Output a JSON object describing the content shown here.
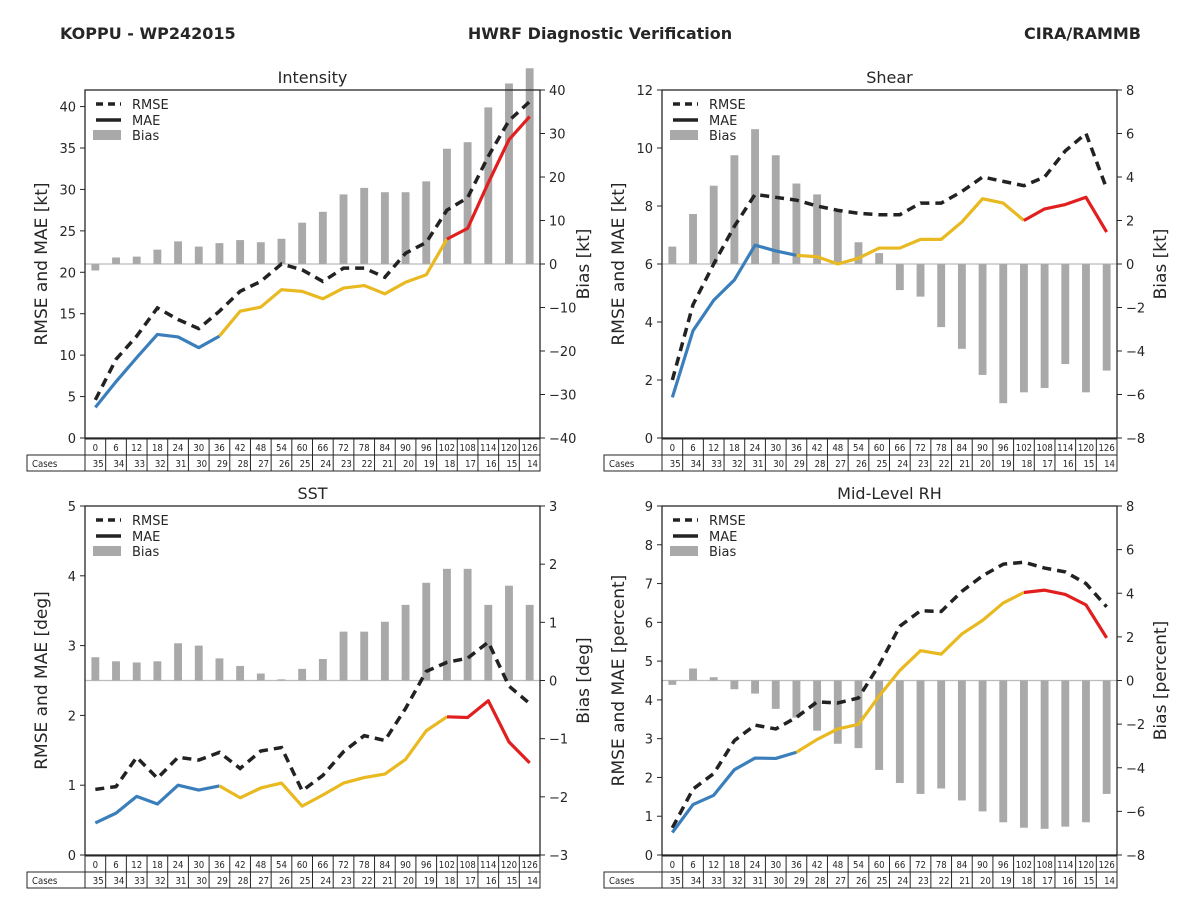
{
  "header": {
    "left": "KOPPU - WP242015",
    "center": "HWRF Diagnostic Verification",
    "right": "CIRA/RAMMB"
  },
  "colors": {
    "rmse": "#222222",
    "mae_early": "#3a7fbb",
    "mae_mid": "#e8b920",
    "mae_late": "#e21f1f",
    "bias": "#a9a9a9",
    "zero_line": "#bbbbbb"
  },
  "legend": [
    "RMSE",
    "MAE",
    "Bias"
  ],
  "table": {
    "row_label": "Cases",
    "hours": [
      "0",
      "6",
      "12",
      "18",
      "24",
      "30",
      "36",
      "42",
      "48",
      "54",
      "60",
      "66",
      "72",
      "78",
      "84",
      "90",
      "96",
      "102",
      "108",
      "114",
      "120",
      "126"
    ],
    "cases": [
      "35",
      "34",
      "33",
      "32",
      "31",
      "30",
      "29",
      "28",
      "27",
      "26",
      "25",
      "24",
      "23",
      "22",
      "21",
      "20",
      "19",
      "18",
      "17",
      "16",
      "15",
      "14"
    ]
  },
  "chart_data": [
    {
      "type": "bar+line",
      "title": "Intensity",
      "ylabel": "RMSE and MAE [kt]",
      "ylabel_right": "Bias [kt]",
      "ylim": [
        0,
        42
      ],
      "yticks": [
        0,
        5,
        10,
        15,
        20,
        25,
        30,
        35,
        40
      ],
      "ylim_right": [
        -40,
        40
      ],
      "yticks_right": [
        -40,
        -30,
        -20,
        -10,
        0,
        10,
        20,
        30,
        40
      ],
      "x": [
        0,
        6,
        12,
        18,
        24,
        30,
        36,
        42,
        48,
        54,
        60,
        66,
        72,
        78,
        84,
        90,
        96,
        102,
        108,
        114,
        120,
        126
      ],
      "series": [
        {
          "name": "RMSE",
          "values": [
            4.6,
            9.5,
            12.3,
            15.7,
            14.3,
            13.2,
            15.3,
            17.7,
            18.9,
            21.0,
            20.3,
            18.9,
            20.5,
            20.5,
            19.4,
            22.3,
            23.6,
            27.5,
            29.0,
            34.0,
            38.3,
            40.6
          ]
        },
        {
          "name": "MAE",
          "values": [
            3.7,
            6.8,
            9.7,
            12.5,
            12.2,
            10.9,
            12.3,
            15.3,
            15.8,
            17.9,
            17.7,
            16.8,
            18.1,
            18.4,
            17.4,
            18.8,
            19.7,
            24.0,
            25.3,
            30.8,
            36.0,
            38.8
          ]
        },
        {
          "name": "Bias",
          "values": [
            -1.5,
            1.5,
            1.7,
            3.3,
            5.2,
            4.0,
            4.8,
            5.5,
            5.0,
            5.8,
            9.5,
            12.0,
            16.0,
            17.5,
            16.5,
            16.5,
            19.0,
            26.5,
            28.0,
            36.0,
            41.5,
            45.0
          ]
        }
      ]
    },
    {
      "type": "bar+line",
      "title": "Shear",
      "ylabel": "RMSE and MAE [kt]",
      "ylabel_right": "Bias [kt]",
      "ylim": [
        0,
        12
      ],
      "yticks": [
        0,
        2,
        4,
        6,
        8,
        10,
        12
      ],
      "ylim_right": [
        -8,
        8
      ],
      "yticks_right": [
        -8,
        -6,
        -4,
        -2,
        0,
        2,
        4,
        6,
        8
      ],
      "x": [
        0,
        6,
        12,
        18,
        24,
        30,
        36,
        42,
        48,
        54,
        60,
        66,
        72,
        78,
        84,
        90,
        96,
        102,
        108,
        114,
        120,
        126
      ],
      "series": [
        {
          "name": "RMSE",
          "values": [
            2.0,
            4.6,
            6.0,
            7.3,
            8.4,
            8.3,
            8.2,
            8.0,
            7.85,
            7.75,
            7.7,
            7.7,
            8.1,
            8.1,
            8.5,
            9.0,
            8.85,
            8.7,
            9.0,
            9.9,
            10.5,
            8.6
          ]
        },
        {
          "name": "MAE",
          "values": [
            1.4,
            3.7,
            4.75,
            5.45,
            6.65,
            6.45,
            6.3,
            6.25,
            6.0,
            6.2,
            6.55,
            6.55,
            6.85,
            6.85,
            7.45,
            8.25,
            8.1,
            7.5,
            7.9,
            8.05,
            8.3,
            7.1
          ]
        },
        {
          "name": "Bias",
          "values": [
            0.8,
            2.3,
            3.6,
            5.0,
            6.2,
            5.0,
            3.7,
            3.2,
            2.4,
            1.0,
            0.5,
            -1.2,
            -1.5,
            -2.9,
            -3.9,
            -5.1,
            -6.4,
            -5.9,
            -5.7,
            -4.6,
            -5.9,
            -4.9
          ]
        }
      ]
    },
    {
      "type": "bar+line",
      "title": "SST",
      "ylabel": "RMSE and MAE [deg]",
      "ylabel_right": "Bias [deg]",
      "ylim": [
        0,
        5
      ],
      "yticks": [
        0,
        1,
        2,
        3,
        4,
        5
      ],
      "ylim_right": [
        -3,
        3
      ],
      "yticks_right": [
        -3,
        -2,
        -1,
        0,
        1,
        2,
        3
      ],
      "x": [
        0,
        6,
        12,
        18,
        24,
        30,
        36,
        42,
        48,
        54,
        60,
        66,
        72,
        78,
        84,
        90,
        96,
        102,
        108,
        114,
        120,
        126
      ],
      "series": [
        {
          "name": "RMSE",
          "values": [
            0.94,
            0.98,
            1.4,
            1.1,
            1.4,
            1.36,
            1.47,
            1.24,
            1.49,
            1.54,
            0.92,
            1.14,
            1.48,
            1.71,
            1.64,
            2.1,
            2.63,
            2.76,
            2.82,
            3.05,
            2.42,
            2.17
          ]
        },
        {
          "name": "MAE",
          "values": [
            0.46,
            0.6,
            0.84,
            0.73,
            1.0,
            0.93,
            0.99,
            0.82,
            0.96,
            1.03,
            0.7,
            0.86,
            1.03,
            1.11,
            1.16,
            1.37,
            1.78,
            1.98,
            1.97,
            2.21,
            1.62,
            1.32
          ]
        },
        {
          "name": "Bias",
          "values": [
            0.4,
            0.33,
            0.31,
            0.33,
            0.64,
            0.6,
            0.38,
            0.25,
            0.12,
            0.02,
            0.2,
            0.37,
            0.84,
            0.84,
            1.01,
            1.3,
            1.68,
            1.92,
            1.92,
            1.3,
            1.63,
            1.3
          ]
        }
      ]
    },
    {
      "type": "bar+line",
      "title": "Mid-Level RH",
      "ylabel": "RMSE and MAE [percent]",
      "ylabel_right": "Bias [percent]",
      "ylim": [
        0,
        9
      ],
      "yticks": [
        0,
        1,
        2,
        3,
        4,
        5,
        6,
        7,
        8,
        9
      ],
      "ylim_right": [
        -8,
        8
      ],
      "yticks_right": [
        -8,
        -6,
        -4,
        -2,
        0,
        2,
        4,
        6,
        8
      ],
      "x": [
        0,
        6,
        12,
        18,
        24,
        30,
        36,
        42,
        48,
        54,
        60,
        66,
        72,
        78,
        84,
        90,
        96,
        102,
        108,
        114,
        120,
        126
      ],
      "series": [
        {
          "name": "RMSE",
          "values": [
            0.7,
            1.7,
            2.1,
            2.95,
            3.35,
            3.25,
            3.55,
            3.95,
            3.92,
            4.05,
            4.9,
            5.9,
            6.3,
            6.28,
            6.8,
            7.2,
            7.5,
            7.55,
            7.4,
            7.3,
            7.0,
            6.4
          ]
        },
        {
          "name": "MAE",
          "values": [
            0.58,
            1.3,
            1.54,
            2.2,
            2.5,
            2.49,
            2.65,
            2.98,
            3.25,
            3.37,
            4.1,
            4.76,
            5.27,
            5.18,
            5.7,
            6.05,
            6.5,
            6.77,
            6.83,
            6.72,
            6.45,
            5.6
          ]
        },
        {
          "name": "Bias",
          "values": [
            -0.2,
            0.55,
            0.15,
            -0.4,
            -0.6,
            -1.3,
            -1.7,
            -2.3,
            -2.9,
            -3.1,
            -4.1,
            -4.7,
            -5.2,
            -4.95,
            -5.5,
            -6.0,
            -6.5,
            -6.75,
            -6.8,
            -6.7,
            -6.5,
            -5.2
          ]
        }
      ]
    }
  ]
}
